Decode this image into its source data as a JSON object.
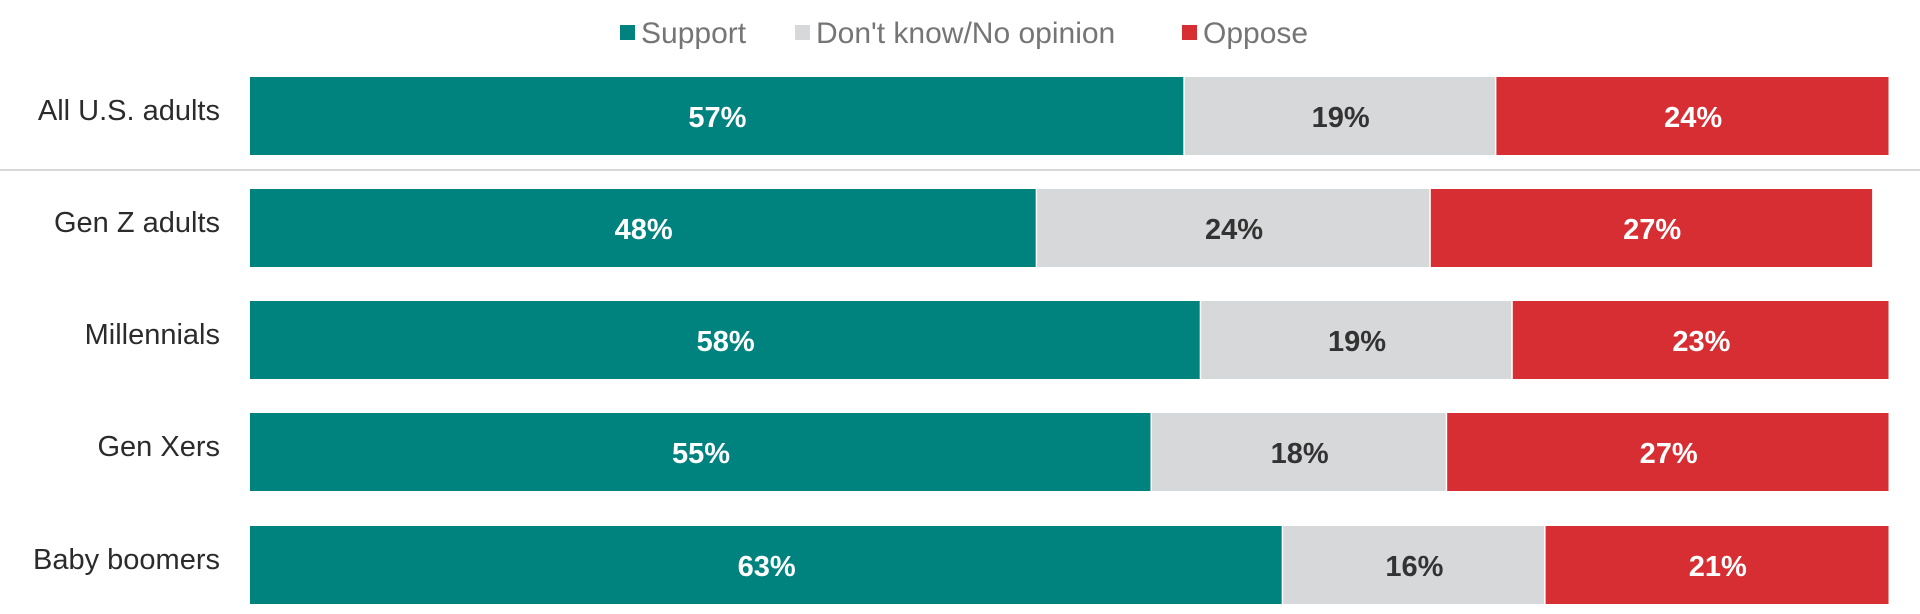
{
  "chart_data": {
    "type": "bar",
    "orientation": "horizontal",
    "stacked": true,
    "percent_stacked": true,
    "legend_position": "top-center",
    "grid": false,
    "categories": [
      "All U.S. adults",
      "Gen Z adults",
      "Millennials",
      "Gen Xers",
      "Baby boomers"
    ],
    "series": [
      {
        "name": "Support",
        "color": "#00827f",
        "label_color": "#ffffff",
        "values": [
          57,
          48,
          58,
          55,
          63
        ]
      },
      {
        "name": "Don't know/No opinion",
        "color": "#d6d8d9",
        "label_color": "#333333",
        "values": [
          19,
          24,
          19,
          18,
          16
        ]
      },
      {
        "name": "Oppose",
        "color": "#d62e33",
        "label_color": "#ffffff",
        "values": [
          24,
          27,
          23,
          27,
          21
        ]
      }
    ],
    "value_suffix": "%",
    "xlim": [
      0,
      100
    ],
    "separator_after_category": "All U.S. adults"
  }
}
